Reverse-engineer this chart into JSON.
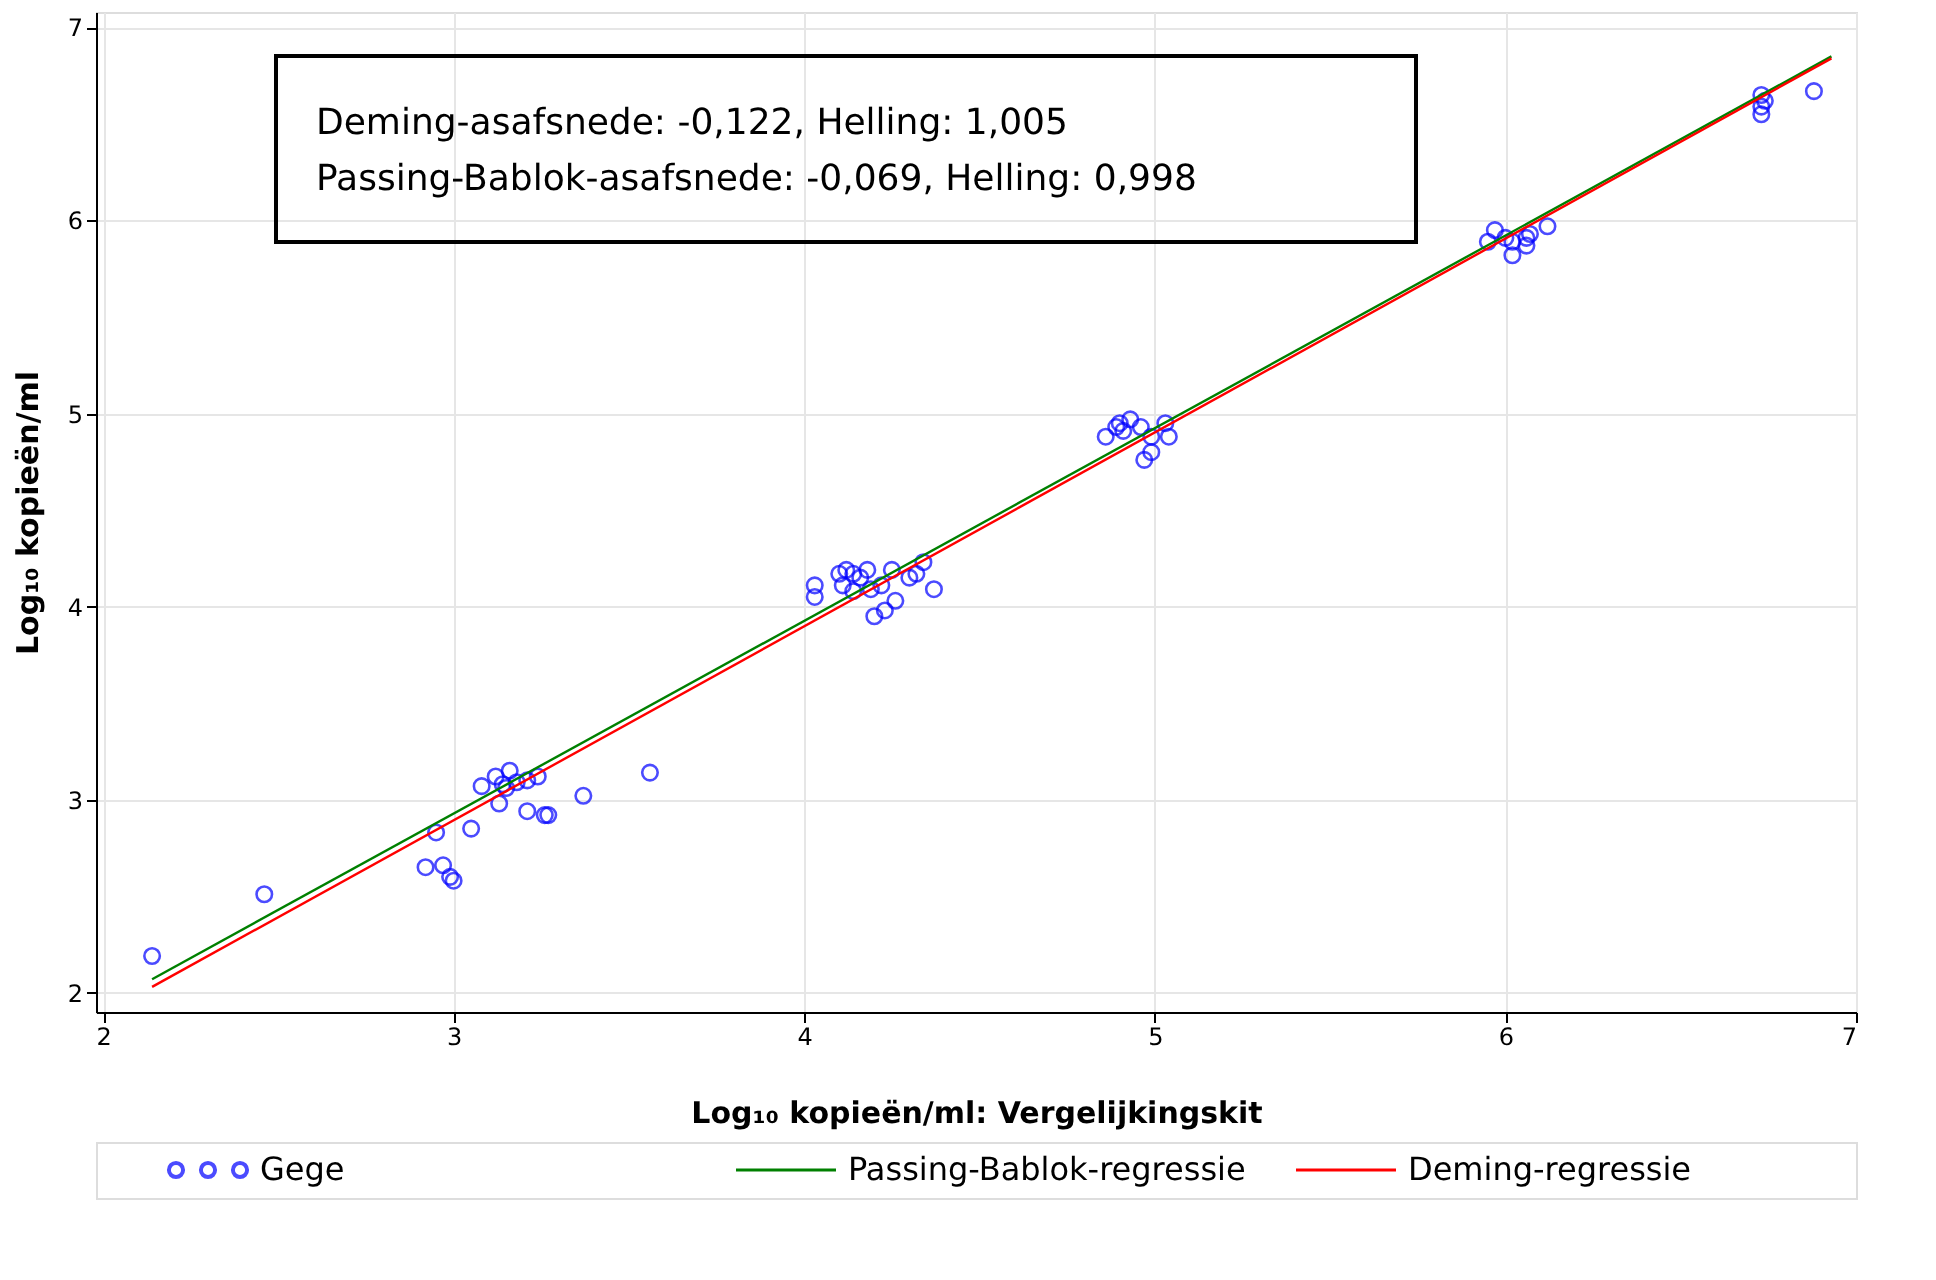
{
  "chart_data": {
    "type": "scatter",
    "xlabel": "Log₁₀ kopieën/ml: Vergelijkingskit",
    "ylabel": "Log₁₀ kopieën/ml",
    "annotations": [
      "Deming-asafsnede: -0,122, Helling: 1,005",
      "Passing-Bablok-asafsnede: -0,069, Helling: 0,998"
    ],
    "xlim": [
      1.98,
      7.0
    ],
    "ylim": [
      1.9,
      7.08
    ],
    "xticks": [
      2,
      3,
      4,
      5,
      6,
      7
    ],
    "yticks": [
      2,
      3,
      4,
      5,
      6,
      7
    ],
    "grid": true,
    "legend": "bottom",
    "series": [
      {
        "name": "Gege",
        "marker": "circle",
        "color": "#0000ff",
        "x": [
          2.14,
          2.46,
          2.95,
          2.92,
          2.97,
          2.99,
          3.0,
          3.05,
          3.08,
          3.12,
          3.14,
          3.15,
          3.13,
          3.21,
          3.24,
          3.21,
          3.26,
          3.27,
          3.37,
          3.56,
          3.18,
          3.16,
          4.03,
          4.03,
          4.1,
          4.12,
          4.14,
          4.16,
          4.18,
          4.19,
          4.22,
          4.2,
          4.23,
          4.26,
          4.3,
          4.32,
          4.34,
          4.37,
          4.11,
          4.14,
          4.25,
          4.86,
          4.89,
          4.9,
          4.91,
          4.93,
          4.96,
          4.99,
          4.97,
          4.99,
          5.03,
          5.04,
          5.95,
          5.97,
          6.0,
          6.02,
          6.02,
          6.06,
          6.07,
          6.12,
          6.06,
          6.73,
          6.74,
          6.73,
          6.73,
          6.88
        ],
        "values": [
          2.19,
          2.51,
          2.83,
          2.65,
          2.66,
          2.6,
          2.58,
          2.85,
          3.07,
          3.12,
          3.08,
          3.06,
          2.98,
          3.1,
          3.12,
          2.94,
          2.92,
          2.92,
          3.02,
          3.14,
          3.09,
          3.15,
          4.11,
          4.05,
          4.17,
          4.19,
          4.17,
          4.15,
          4.19,
          4.09,
          4.11,
          3.95,
          3.98,
          4.03,
          4.15,
          4.17,
          4.23,
          4.09,
          4.11,
          4.08,
          4.19,
          4.88,
          4.93,
          4.95,
          4.91,
          4.97,
          4.93,
          4.88,
          4.76,
          4.8,
          4.95,
          4.88,
          5.89,
          5.95,
          5.91,
          5.89,
          5.82,
          5.91,
          5.93,
          5.97,
          5.87,
          6.65,
          6.62,
          6.59,
          6.55,
          6.67
        ]
      },
      {
        "name": "Passing-Bablok-regressie",
        "type": "line",
        "color": "#008000",
        "x": [
          2.14,
          6.93
        ],
        "values": [
          2.07,
          6.85
        ]
      },
      {
        "name": "Deming-regressie",
        "type": "line",
        "color": "#ff0000",
        "x": [
          2.14,
          6.93
        ],
        "values": [
          2.03,
          6.84
        ]
      }
    ]
  }
}
